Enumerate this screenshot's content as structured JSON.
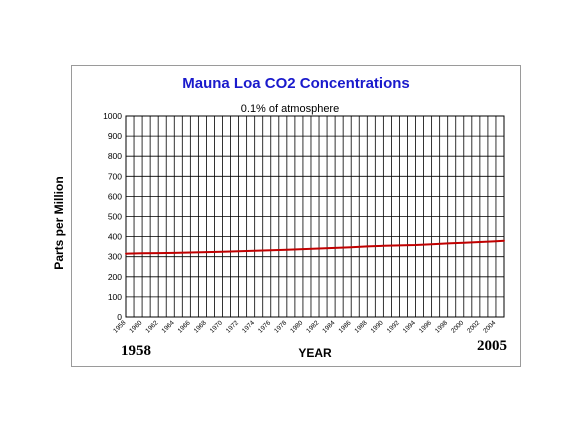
{
  "chart_data": {
    "type": "line",
    "title": "Mauna Loa CO2 Concentrations",
    "subtitle": "0.1% of atmosphere",
    "xlabel": "YEAR",
    "ylabel": "Parts per Million",
    "start_label": "1958",
    "end_label": "2005",
    "ylim": [
      0,
      1000
    ],
    "yticks": [
      0,
      100,
      200,
      300,
      400,
      500,
      600,
      700,
      800,
      900,
      1000
    ],
    "xlim": [
      1958,
      2005
    ],
    "xticks": [
      "1958",
      "1960",
      "1962",
      "1964",
      "1966",
      "1968",
      "1970",
      "1972",
      "1974",
      "1976",
      "1978",
      "1980",
      "1982",
      "1984",
      "1986",
      "1988",
      "1990",
      "1992",
      "1994",
      "1996",
      "1998",
      "2000",
      "2002",
      "2004"
    ],
    "grid": true,
    "legend": "none",
    "series": [
      {
        "color": "#c00000",
        "x": [
          1958,
          1960,
          1962,
          1964,
          1966,
          1968,
          1970,
          1972,
          1974,
          1976,
          1978,
          1980,
          1982,
          1984,
          1986,
          1988,
          1990,
          1992,
          1994,
          1996,
          1998,
          2000,
          2002,
          2004,
          2005
        ],
        "values": [
          315,
          317,
          318,
          319,
          321,
          323,
          325,
          327,
          330,
          332,
          335,
          338,
          341,
          344,
          347,
          351,
          354,
          356,
          358,
          362,
          366,
          369,
          373,
          377,
          379
        ]
      }
    ]
  },
  "colors": {
    "title": "#1a1acc",
    "grid": "#000000",
    "series": "#c00000"
  }
}
